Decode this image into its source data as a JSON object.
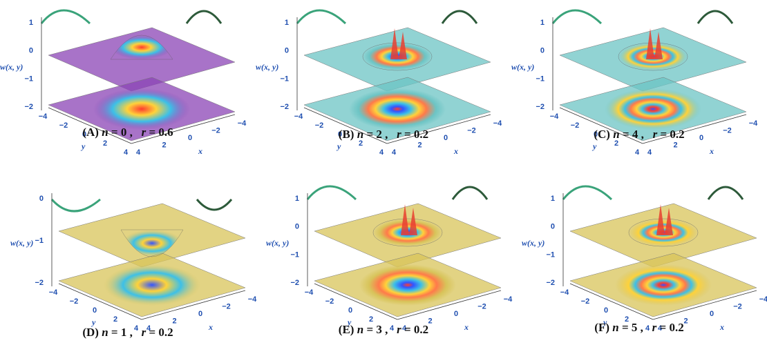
{
  "panels": [
    {
      "letter": "(A)",
      "n": "0",
      "r": "0.6",
      "theme": "purple",
      "rings": 0,
      "peak": "up"
    },
    {
      "letter": "(B)",
      "n": "2",
      "r": "0.2",
      "theme": "teal",
      "rings": 1,
      "peak": "mixed"
    },
    {
      "letter": "(C)",
      "n": "4",
      "r": "0.2",
      "theme": "teal",
      "rings": 2,
      "peak": "mixed"
    },
    {
      "letter": "(D)",
      "n": "1",
      "r": "0.2",
      "theme": "yellow",
      "rings": 0,
      "peak": "down"
    },
    {
      "letter": "(E)",
      "n": "3",
      "r": "0.2",
      "theme": "yellow",
      "rings": 1,
      "peak": "mixed"
    },
    {
      "letter": "(F)",
      "n": "5",
      "r": "0.2",
      "theme": "yellow",
      "rings": 2,
      "peak": "mixed"
    }
  ],
  "axes": {
    "z_label": "w(x, y)",
    "x_label": "x",
    "y_label": "y",
    "z_ticks_top": [
      "0",
      "−1",
      "−2"
    ],
    "z_ticks_top_with1": [
      "1",
      "0",
      "−1",
      "−2"
    ],
    "xy_ticks": [
      "−4",
      "−2",
      "0",
      "2",
      "4"
    ]
  },
  "colors": {
    "purple": "#8b44b6",
    "teal": "#6cc4c4",
    "yellow": "#d8c45a",
    "tick": "#1f4fb0"
  }
}
